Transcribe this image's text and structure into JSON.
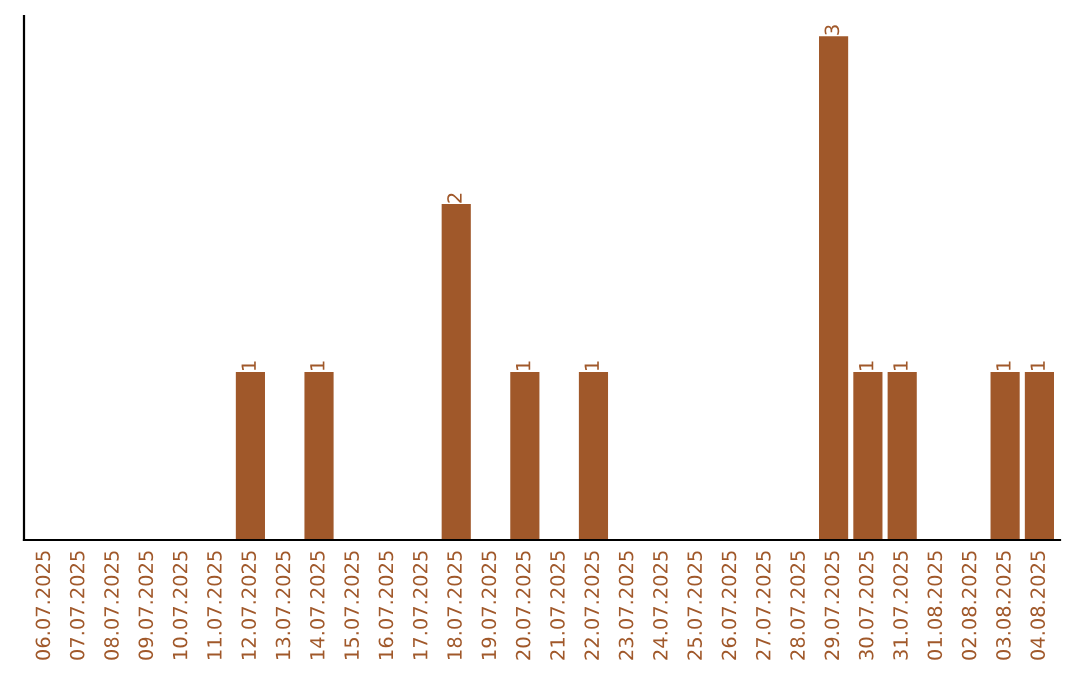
{
  "chart_data": {
    "type": "bar",
    "categories": [
      "06.07.2025",
      "07.07.2025",
      "08.07.2025",
      "09.07.2025",
      "10.07.2025",
      "11.07.2025",
      "12.07.2025",
      "13.07.2025",
      "14.07.2025",
      "15.07.2025",
      "16.07.2025",
      "17.07.2025",
      "18.07.2025",
      "19.07.2025",
      "20.07.2025",
      "21.07.2025",
      "22.07.2025",
      "23.07.2025",
      "24.07.2025",
      "25.07.2025",
      "26.07.2025",
      "27.07.2025",
      "28.07.2025",
      "29.07.2025",
      "30.07.2025",
      "31.07.2025",
      "01.08.2025",
      "02.08.2025",
      "03.08.2025",
      "04.08.2025"
    ],
    "values": [
      0,
      0,
      0,
      0,
      0,
      0,
      1,
      0,
      1,
      0,
      0,
      0,
      2,
      0,
      1,
      0,
      1,
      0,
      0,
      0,
      0,
      0,
      0,
      3,
      1,
      1,
      0,
      0,
      1,
      1
    ],
    "value_labels": [
      null,
      null,
      null,
      null,
      null,
      null,
      "1",
      null,
      "1",
      null,
      null,
      null,
      "2",
      null,
      "1",
      null,
      "1",
      null,
      null,
      null,
      null,
      null,
      null,
      "3",
      "1",
      "1",
      null,
      null,
      "1",
      "1"
    ],
    "color": "#a0582a",
    "tick_labels": "x",
    "grid": false,
    "legend": false
  }
}
